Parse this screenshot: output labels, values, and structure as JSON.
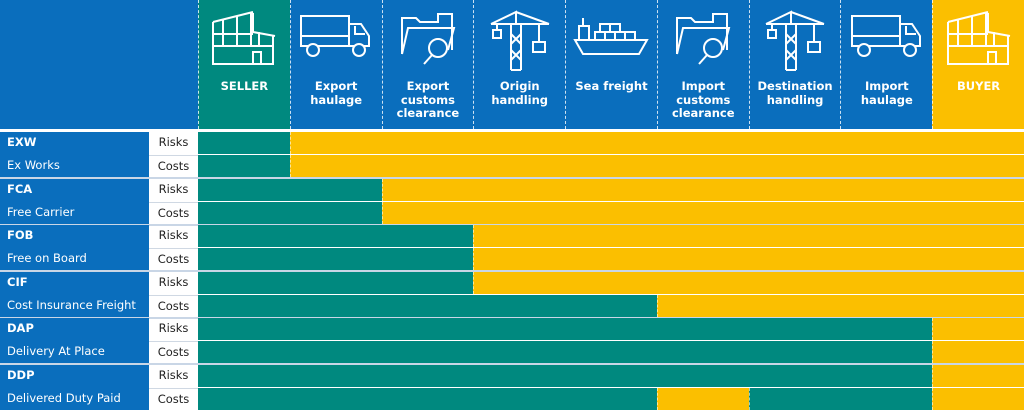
{
  "colors": {
    "blue": "#0a6ebd",
    "seller": "#00897f",
    "buyer": "#fbbf00"
  },
  "stages": [
    {
      "label": "SELLER",
      "icon": "factory-icon",
      "bg": "seller"
    },
    {
      "label": "Export haulage",
      "icon": "truck-icon"
    },
    {
      "label": "Export customs clearance",
      "icon": "folder-search-icon"
    },
    {
      "label": "Origin handling",
      "icon": "crane-icon"
    },
    {
      "label": "Sea freight",
      "icon": "ship-icon"
    },
    {
      "label": "Import customs clearance",
      "icon": "folder-search-icon"
    },
    {
      "label": "Destination handling",
      "icon": "crane-icon"
    },
    {
      "label": "Import haulage",
      "icon": "truck-icon"
    },
    {
      "label": "BUYER",
      "icon": "factory-icon",
      "bg": "buyer"
    }
  ],
  "row_labels": {
    "risks": "Risks",
    "costs": "Costs"
  },
  "incoterms": [
    {
      "code": "EXW",
      "name": "Ex Works",
      "risks": [
        [
          "seller",
          1
        ],
        [
          "buyer",
          8
        ]
      ],
      "costs": [
        [
          "seller",
          1
        ],
        [
          "buyer",
          8
        ]
      ]
    },
    {
      "code": "FCA",
      "name": "Free Carrier",
      "risks": [
        [
          "seller",
          2
        ],
        [
          "buyer",
          7
        ]
      ],
      "costs": [
        [
          "seller",
          2
        ],
        [
          "buyer",
          7
        ]
      ]
    },
    {
      "code": "FOB",
      "name": "Free on Board",
      "risks": [
        [
          "seller",
          3
        ],
        [
          "buyer",
          6
        ]
      ],
      "costs": [
        [
          "seller",
          3
        ],
        [
          "buyer",
          6
        ]
      ]
    },
    {
      "code": "CIF",
      "name": "Cost Insurance Freight",
      "risks": [
        [
          "seller",
          3
        ],
        [
          "buyer",
          6
        ]
      ],
      "costs": [
        [
          "seller",
          5
        ],
        [
          "buyer",
          4
        ]
      ]
    },
    {
      "code": "DAP",
      "name": "Delivery At Place",
      "risks": [
        [
          "seller",
          8
        ],
        [
          "buyer",
          1
        ]
      ],
      "costs": [
        [
          "seller",
          8
        ],
        [
          "buyer",
          1
        ]
      ]
    },
    {
      "code": "DDP",
      "name": "Delivered Duty Paid",
      "risks": [
        [
          "seller",
          8
        ],
        [
          "buyer",
          1
        ]
      ],
      "costs": [
        [
          "seller",
          5
        ],
        [
          "buyer",
          1
        ],
        [
          "seller",
          2
        ],
        [
          "buyer",
          1
        ]
      ]
    }
  ]
}
